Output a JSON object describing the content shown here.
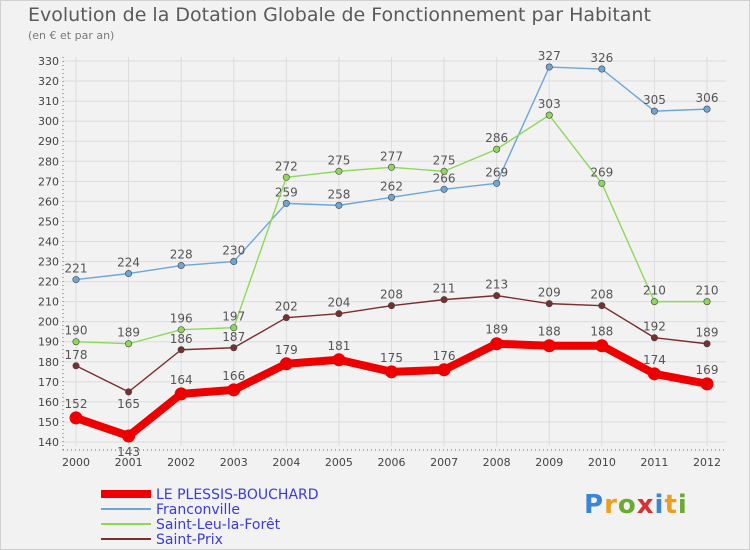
{
  "title": "Evolution de la Dotation Globale de Fonctionnement par Habitant",
  "subtitle": "(en € et par an)",
  "logo_text": "Proxiti",
  "chart_data": {
    "type": "line",
    "title": "Evolution de la Dotation Globale de Fonctionnement par Habitant",
    "subtitle": "(en € et par an)",
    "xlabel": "",
    "ylabel": "",
    "x": [
      "2000",
      "2001",
      "2002",
      "2003",
      "2004",
      "2005",
      "2006",
      "2007",
      "2008",
      "2009",
      "2010",
      "2011",
      "2012"
    ],
    "ylim": [
      140,
      330
    ],
    "ytick_step": 10,
    "grid": true,
    "legend_position": "bottom-left",
    "series": [
      {
        "name": "LE PLESSIS-BOUCHARD",
        "color": "#ee0000",
        "emphasis": true,
        "values": [
          152,
          143,
          164,
          166,
          179,
          181,
          175,
          176,
          189,
          188,
          188,
          174,
          169
        ]
      },
      {
        "name": "Franconville",
        "color": "#6ea6d8",
        "values": [
          221,
          224,
          228,
          230,
          259,
          258,
          262,
          266,
          269,
          327,
          326,
          305,
          306
        ]
      },
      {
        "name": "Saint-Leu-la-Forêt",
        "color": "#8ed858",
        "values": [
          190,
          189,
          196,
          197,
          272,
          275,
          277,
          275,
          286,
          303,
          269,
          210,
          210
        ]
      },
      {
        "name": "Saint-Prix",
        "color": "#7a2e2e",
        "values": [
          178,
          165,
          186,
          187,
          202,
          204,
          208,
          211,
          213,
          209,
          208,
          192,
          189
        ]
      }
    ]
  }
}
